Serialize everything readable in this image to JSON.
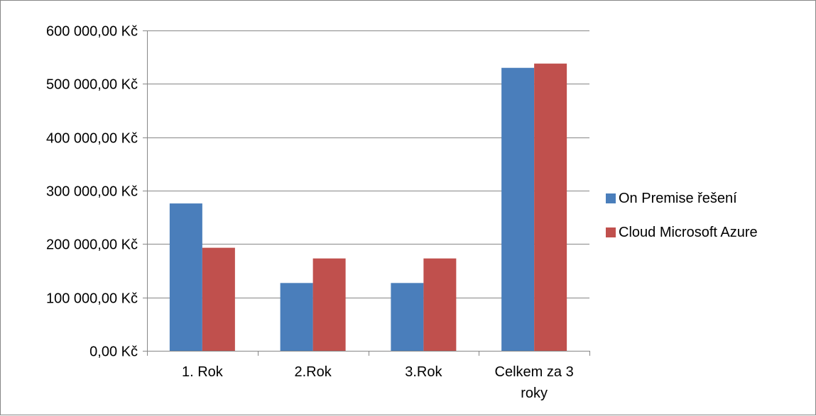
{
  "chart_data": {
    "type": "bar",
    "categories": [
      "1. Rok",
      "2.Rok",
      "3.Rok",
      "Celkem za 3 roky"
    ],
    "series": [
      {
        "name": "On Premise řešení",
        "color": "#4a7ebb",
        "values": [
          276000,
          127000,
          127000,
          530000
        ]
      },
      {
        "name": "Cloud Microsoft Azure",
        "color": "#c0504d",
        "values": [
          193000,
          173000,
          173000,
          538000
        ]
      }
    ],
    "ylim": [
      0,
      600000
    ],
    "yticks": [
      {
        "value": 0,
        "label": "0,00 Kč"
      },
      {
        "value": 100000,
        "label": "100 000,00 Kč"
      },
      {
        "value": 200000,
        "label": "200 000,00 Kč"
      },
      {
        "value": 300000,
        "label": "300 000,00 Kč"
      },
      {
        "value": 400000,
        "label": "400 000,00 Kč"
      },
      {
        "value": 500000,
        "label": "500 000,00 Kč"
      },
      {
        "value": 600000,
        "label": "600 000,00 Kč"
      }
    ],
    "grid": true,
    "legend_position": "right"
  }
}
